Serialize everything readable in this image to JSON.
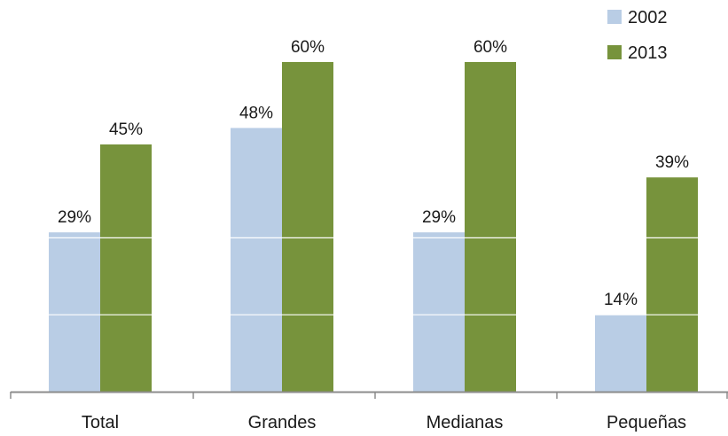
{
  "chart_data": {
    "type": "bar",
    "title": "",
    "xlabel": "",
    "ylabel": "",
    "categories": [
      "Total",
      "Grandes",
      "Medianas",
      "Pequeñas"
    ],
    "series": [
      {
        "name": "2002",
        "values": [
          29,
          48,
          29,
          14
        ],
        "labels": [
          "29%",
          "48%",
          "29%",
          "14%"
        ],
        "color": "#b9cde5"
      },
      {
        "name": "2013",
        "values": [
          45,
          60,
          60,
          39
        ],
        "labels": [
          "45%",
          "60%",
          "60%",
          "39%"
        ],
        "color": "#77933c"
      }
    ],
    "ylim": [
      0,
      70
    ],
    "gridlines": [
      14,
      28
    ],
    "gridline_color": "#ffffff",
    "axis_color": "#8c8c8c",
    "legend_position": "top-right",
    "y_axis_visible": false
  }
}
